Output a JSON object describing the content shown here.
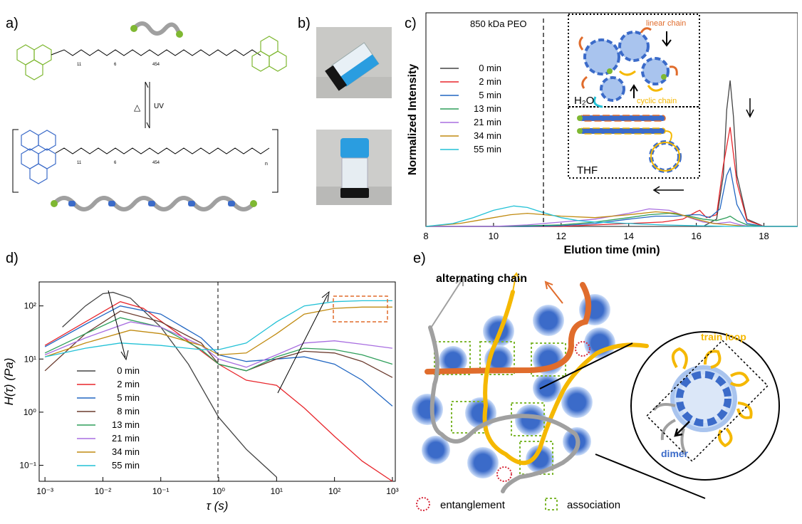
{
  "panels": {
    "a": {
      "label": "a)",
      "n_top": "11",
      "n_mid": "6",
      "n_peo": "454",
      "n_sub": "n",
      "uv": "UV",
      "heat": "△"
    },
    "b": {
      "label": "b)"
    },
    "c": {
      "label": "c)",
      "peo_note": "850 kDa PEO",
      "inset_linear": "linear chain",
      "inset_cyclic": "cyclic chain",
      "inset_h2o": "H₂O",
      "inset_thf": "THF"
    },
    "d": {
      "label": "d)"
    },
    "e": {
      "label": "e)",
      "alternating": "alternating chain",
      "train_loop": "train loop",
      "dimer": "dimer",
      "entanglement": "entanglement",
      "association": "association"
    }
  },
  "colors": {
    "s0": "#444444",
    "s2": "#e8262c",
    "s5": "#2166c2",
    "s8": "#6b3b2e",
    "s13": "#2e9e5a",
    "s21": "#a86ee0",
    "s34": "#c08a10",
    "s55": "#22c1d6",
    "orange": "#e06c2c",
    "yellow": "#f5b800",
    "blue": "#3b6bc9",
    "green": "#7fb832",
    "gray": "#a0a0a0"
  },
  "chart_data": [
    {
      "type": "line",
      "xlabel": "Elution time (min)",
      "ylabel": "Normalized Intensity",
      "xlim": [
        8,
        19
      ],
      "xticks": [
        8,
        10,
        12,
        14,
        16,
        18
      ],
      "grid": false,
      "legend_placement": "left",
      "series": [
        {
          "name": "0 min",
          "color": "#444444",
          "x": [
            8,
            9,
            10,
            11,
            12,
            13,
            14,
            15,
            15.8,
            16.2,
            16.6,
            16.8,
            16.9,
            17.0,
            17.1,
            17.2,
            17.5,
            18,
            19
          ],
          "y": [
            0,
            0,
            0,
            0,
            0,
            0,
            0,
            0,
            0,
            0,
            0.05,
            0.35,
            0.8,
            1.0,
            0.75,
            0.35,
            0.05,
            0,
            0
          ]
        },
        {
          "name": "2 min",
          "color": "#e8262c",
          "x": [
            8,
            9,
            10,
            11,
            12,
            13,
            14,
            15,
            15.6,
            16.0,
            16.1,
            16.3,
            16.6,
            16.8,
            17.0,
            17.2,
            17.5,
            18,
            19
          ],
          "y": [
            0,
            0,
            0,
            0,
            0,
            0.01,
            0.02,
            0.03,
            0.05,
            0.1,
            0.11,
            0.06,
            0.08,
            0.42,
            0.68,
            0.3,
            0.04,
            0,
            0
          ]
        },
        {
          "name": "5 min",
          "color": "#2166c2",
          "x": [
            8,
            9,
            10,
            11,
            12,
            13,
            14,
            14.8,
            15.4,
            15.9,
            16.1,
            16.4,
            16.7,
            16.9,
            17.0,
            17.2,
            17.5,
            18,
            19
          ],
          "y": [
            0,
            0,
            0,
            0,
            0.005,
            0.02,
            0.05,
            0.07,
            0.07,
            0.08,
            0.08,
            0.06,
            0.12,
            0.35,
            0.4,
            0.15,
            0.02,
            0,
            0
          ]
        },
        {
          "name": "13 min",
          "color": "#2e9e5a",
          "x": [
            8,
            9,
            10,
            11,
            12,
            13,
            14,
            14.6,
            15.2,
            15.8,
            16.2,
            16.6,
            16.9,
            17.0,
            17.2,
            17.5,
            18,
            19
          ],
          "y": [
            0,
            0,
            0,
            0.005,
            0.01,
            0.03,
            0.06,
            0.08,
            0.09,
            0.07,
            0.05,
            0.04,
            0.06,
            0.07,
            0.04,
            0.01,
            0,
            0
          ]
        },
        {
          "name": "21 min",
          "color": "#a86ee0",
          "x": [
            8,
            9,
            10,
            11,
            12,
            13,
            14,
            14.6,
            15.2,
            15.8,
            16.2,
            16.6,
            17.0,
            17.3,
            17.6,
            18,
            19
          ],
          "y": [
            0,
            0,
            0,
            0.01,
            0.03,
            0.05,
            0.09,
            0.12,
            0.11,
            0.06,
            0.03,
            0.02,
            0.03,
            0.01,
            0,
            0,
            0
          ]
        },
        {
          "name": "34 min",
          "color": "#c08a10",
          "x": [
            8,
            9,
            9.5,
            10,
            10.5,
            11,
            11.5,
            12,
            13,
            14,
            14.8,
            15.4,
            16,
            16.5,
            17,
            17.5,
            18,
            19
          ],
          "y": [
            0,
            0.02,
            0.04,
            0.06,
            0.08,
            0.09,
            0.08,
            0.07,
            0.06,
            0.08,
            0.1,
            0.09,
            0.05,
            0.02,
            0.01,
            0,
            0,
            0
          ]
        },
        {
          "name": "55 min",
          "color": "#22c1d6",
          "x": [
            8,
            8.8,
            9.4,
            10,
            10.6,
            11,
            11.4,
            12,
            12.5,
            13,
            14,
            15,
            16,
            17,
            18,
            19
          ],
          "y": [
            0,
            0.02,
            0.06,
            0.11,
            0.14,
            0.13,
            0.1,
            0.06,
            0.04,
            0.03,
            0.02,
            0.01,
            0.005,
            0,
            0,
            0
          ]
        }
      ]
    },
    {
      "type": "line",
      "xlabel": "τ (s)",
      "ylabel": "H(τ) (Pa)",
      "xscale": "log",
      "yscale": "log",
      "xlim": [
        0.001,
        1000
      ],
      "ylim": [
        0.05,
        200
      ],
      "xticks": [
        "10⁻³",
        "10⁻²",
        "10⁻¹",
        "10⁰",
        "10¹",
        "10²",
        "10³"
      ],
      "yticks": [
        "10⁻¹",
        "10⁰",
        "10¹",
        "10²"
      ],
      "grid": false,
      "legend_placement": "bottom-left",
      "series": [
        {
          "name": "0 min",
          "color": "#444444",
          "x": [
            0.002,
            0.005,
            0.01,
            0.015,
            0.03,
            0.1,
            0.3,
            1,
            3,
            10
          ],
          "y": [
            40,
            100,
            170,
            180,
            140,
            40,
            8,
            0.8,
            0.2,
            0.06
          ]
        },
        {
          "name": "2 min",
          "color": "#e8262c",
          "x": [
            0.001,
            0.005,
            0.02,
            0.05,
            0.2,
            1,
            3,
            10,
            30,
            100,
            300,
            1000
          ],
          "y": [
            18,
            50,
            120,
            90,
            30,
            8,
            4,
            3.2,
            1.2,
            0.35,
            0.12,
            0.05
          ]
        },
        {
          "name": "5 min",
          "color": "#2166c2",
          "x": [
            0.001,
            0.005,
            0.02,
            0.1,
            0.5,
            1,
            3,
            10,
            30,
            100,
            300,
            1000
          ],
          "y": [
            17,
            45,
            100,
            70,
            25,
            12,
            9,
            10,
            11,
            8,
            4,
            1.3
          ]
        },
        {
          "name": "8 min",
          "color": "#6b3b2e",
          "x": [
            0.001,
            0.005,
            0.02,
            0.1,
            0.5,
            1,
            3,
            10,
            30,
            100,
            300,
            1000
          ],
          "y": [
            6,
            30,
            80,
            50,
            20,
            8,
            6,
            10,
            14,
            13,
            9,
            4.5
          ]
        },
        {
          "name": "13 min",
          "color": "#2e9e5a",
          "x": [
            0.001,
            0.005,
            0.02,
            0.1,
            0.5,
            1,
            3,
            10,
            30,
            100,
            300,
            1000
          ],
          "y": [
            13,
            30,
            60,
            40,
            15,
            8,
            6,
            11,
            16,
            15,
            12,
            8
          ]
        },
        {
          "name": "21 min",
          "color": "#a86ee0",
          "x": [
            0.001,
            0.005,
            0.03,
            0.1,
            0.5,
            1,
            3,
            10,
            30,
            100,
            300,
            1000
          ],
          "y": [
            12,
            25,
            50,
            40,
            18,
            10,
            7,
            12,
            20,
            22,
            19,
            16
          ]
        },
        {
          "name": "34 min",
          "color": "#c08a10",
          "x": [
            0.001,
            0.005,
            0.03,
            0.1,
            0.5,
            1,
            3,
            10,
            30,
            100,
            300,
            1000
          ],
          "y": [
            11,
            20,
            35,
            30,
            18,
            12,
            13,
            30,
            70,
            90,
            95,
            95
          ]
        },
        {
          "name": "55 min",
          "color": "#22c1d6",
          "x": [
            0.001,
            0.005,
            0.02,
            0.1,
            0.5,
            1,
            3,
            10,
            30,
            100,
            300,
            1000
          ],
          "y": [
            11,
            16,
            20,
            18,
            15,
            15,
            20,
            50,
            100,
            120,
            125,
            125
          ]
        }
      ]
    }
  ]
}
